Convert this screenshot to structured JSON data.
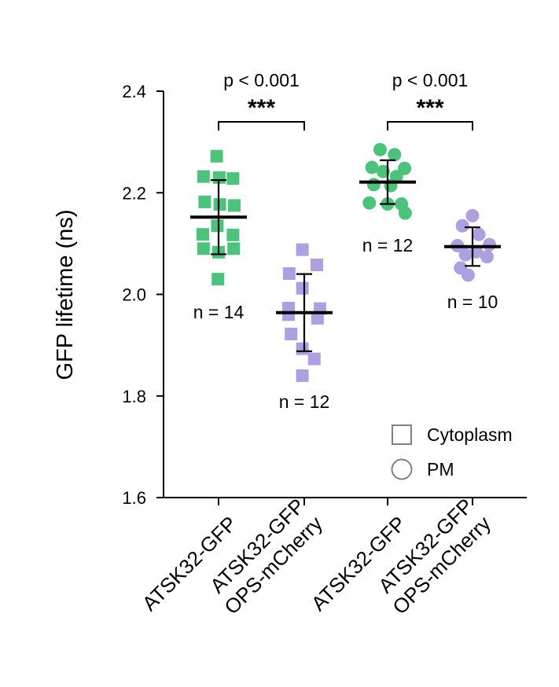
{
  "chart_data": {
    "type": "scatter",
    "ylabel": "GFP lifetime (ns)",
    "ylim": [
      1.6,
      2.4
    ],
    "yticks": [
      1.6,
      1.8,
      2.0,
      2.2,
      2.4
    ],
    "ytick_labels": [
      "1.6",
      "1.8",
      "2.0",
      "2.2",
      "2.4"
    ],
    "colors": {
      "green": "#4cc27d",
      "purple": "#ae9fe0",
      "legend": "#808080"
    },
    "groups": [
      {
        "name": "ATSK32-GFP",
        "label_lines": [
          "ATSK32-GFP"
        ],
        "marker": "square",
        "color": "#4cc27d",
        "mean": 2.152,
        "sd": 0.073,
        "n_label": "n = 14",
        "points": [
          {
            "y": 2.272,
            "dx": -0.06
          },
          {
            "y": 2.232,
            "dx": -0.48
          },
          {
            "y": 2.23,
            "dx": 0.02
          },
          {
            "y": 2.228,
            "dx": 0.46
          },
          {
            "y": 2.182,
            "dx": -0.44
          },
          {
            "y": 2.177,
            "dx": 0.04
          },
          {
            "y": 2.175,
            "dx": 0.5
          },
          {
            "y": 2.135,
            "dx": -0.04
          },
          {
            "y": 2.118,
            "dx": -0.5
          },
          {
            "y": 2.117,
            "dx": 0.46
          },
          {
            "y": 2.09,
            "dx": -0.48
          },
          {
            "y": 2.09,
            "dx": 0.48
          },
          {
            "y": 2.083,
            "dx": 0.0
          },
          {
            "y": 2.03,
            "dx": -0.02
          }
        ]
      },
      {
        "name": "ATSK32-GFP OPS-mCherry (cytoplasm)",
        "label_lines": [
          "ATSK32-GFP",
          "OPS-mCherry"
        ],
        "marker": "square",
        "color": "#ae9fe0",
        "mean": 1.964,
        "sd": 0.076,
        "n_label": "n = 12",
        "points": [
          {
            "y": 2.088,
            "dx": -0.06
          },
          {
            "y": 2.058,
            "dx": 0.4
          },
          {
            "y": 2.041,
            "dx": -0.48
          },
          {
            "y": 2.012,
            "dx": -0.06
          },
          {
            "y": 1.973,
            "dx": -0.5
          },
          {
            "y": 1.972,
            "dx": 0.5
          },
          {
            "y": 1.96,
            "dx": -0.5
          },
          {
            "y": 1.953,
            "dx": 0.42
          },
          {
            "y": 1.922,
            "dx": -0.42
          },
          {
            "y": 1.893,
            "dx": -0.06
          },
          {
            "y": 1.873,
            "dx": 0.32
          },
          {
            "y": 1.84,
            "dx": -0.06
          }
        ]
      },
      {
        "name": "ATSK32-GFP (PM)",
        "label_lines": [
          "ATSK32-GFP"
        ],
        "marker": "circle",
        "color": "#4cc27d",
        "mean": 2.221,
        "sd": 0.043,
        "n_label": "n = 12",
        "points": [
          {
            "y": 2.285,
            "dx": -0.24
          },
          {
            "y": 2.275,
            "dx": 0.22
          },
          {
            "y": 2.25,
            "dx": -0.5
          },
          {
            "y": 2.248,
            "dx": 0.54
          },
          {
            "y": 2.242,
            "dx": -0.14
          },
          {
            "y": 2.232,
            "dx": 0.28
          },
          {
            "y": 2.216,
            "dx": -0.44
          },
          {
            "y": 2.214,
            "dx": 0.1
          },
          {
            "y": 2.18,
            "dx": -0.58
          },
          {
            "y": 2.178,
            "dx": 0.0
          },
          {
            "y": 2.178,
            "dx": 0.44
          },
          {
            "y": 2.16,
            "dx": 0.56
          }
        ]
      },
      {
        "name": "ATSK32-GFP OPS-mCherry (PM)",
        "label_lines": [
          "ATSK32-GFP",
          "OPS-mCherry"
        ],
        "marker": "circle",
        "color": "#ae9fe0",
        "mean": 2.094,
        "sd": 0.038,
        "n_label": "n = 10",
        "points": [
          {
            "y": 2.155,
            "dx": 0.0
          },
          {
            "y": 2.135,
            "dx": -0.32
          },
          {
            "y": 2.118,
            "dx": 0.2
          },
          {
            "y": 2.098,
            "dx": 0.54
          },
          {
            "y": 2.096,
            "dx": -0.48
          },
          {
            "y": 2.084,
            "dx": 0.12
          },
          {
            "y": 2.078,
            "dx": -0.22
          },
          {
            "y": 2.074,
            "dx": 0.46
          },
          {
            "y": 2.052,
            "dx": -0.38
          },
          {
            "y": 2.038,
            "dx": -0.14
          }
        ]
      }
    ],
    "comparisons": [
      {
        "groups": [
          0,
          1
        ],
        "p_label": "p < 0.001",
        "stars": "***"
      },
      {
        "groups": [
          2,
          3
        ],
        "p_label": "p < 0.001",
        "stars": "***"
      }
    ],
    "legend": [
      {
        "marker": "square",
        "label": "Cytoplasm"
      },
      {
        "marker": "circle",
        "label": "PM"
      }
    ]
  }
}
